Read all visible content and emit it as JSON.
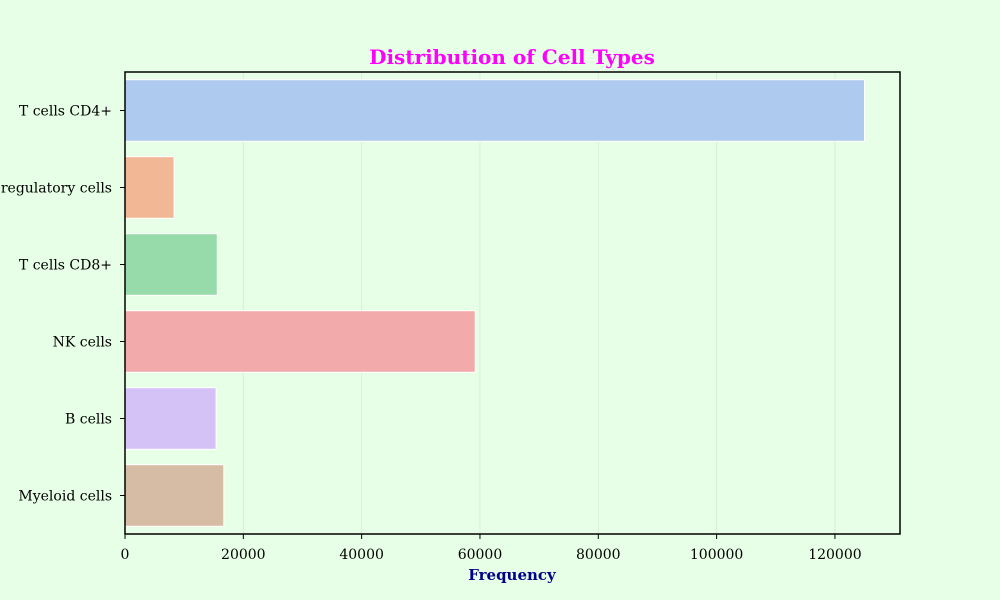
{
  "chart_data": {
    "type": "bar",
    "orientation": "horizontal",
    "title": "Distribution of Cell Types",
    "xlabel": "Frequency",
    "ylabel": "",
    "categories": [
      "T cells CD4+",
      "T regulatory cells",
      "T cells CD8+",
      "NK cells",
      "B cells",
      "Myeloid cells"
    ],
    "values": [
      125000,
      8300,
      15600,
      59200,
      15400,
      16700
    ],
    "xlim": [
      0,
      131000
    ],
    "xticks": [
      0,
      20000,
      40000,
      60000,
      80000,
      100000,
      120000
    ],
    "xtick_labels": [
      "0",
      "20000",
      "40000",
      "60000",
      "80000",
      "100000",
      "120000"
    ],
    "grid": true,
    "legend": "none"
  },
  "colors": {
    "background": "#e6ffe6",
    "title": "#ff00ff",
    "xlabel": "#00008b",
    "bars": [
      "#aecbef",
      "#f2b896",
      "#98dbab",
      "#f3aaaa",
      "#d4c2f7",
      "#d6bca4"
    ],
    "bar_edge": "#ffffff",
    "axes": "#000000",
    "grid": "#d8efd8"
  }
}
